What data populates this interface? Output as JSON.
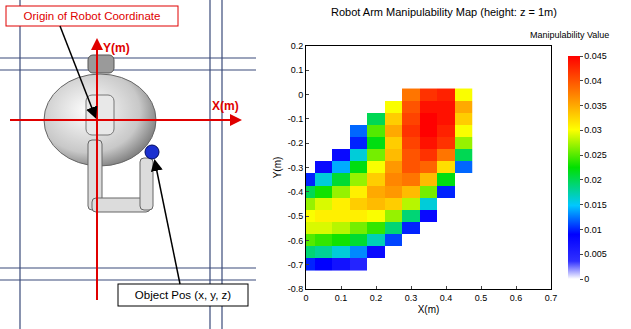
{
  "diagram": {
    "origin_label": "Origin of Robot Coordinate",
    "x_axis_label": "X(m)",
    "y_axis_label": "Y(m)",
    "object_label": "Object Pos (x, y, z)"
  },
  "chart_data": {
    "type": "heatmap",
    "title": "Robot Arm Manipulability Map (height: z = 1m)",
    "x_label": "X(m)",
    "y_label": "Y(m)",
    "x": [
      0,
      0.05,
      0.1,
      0.15,
      0.2,
      0.25,
      0.3,
      0.35,
      0.4,
      0.45
    ],
    "y": [
      -0.7,
      -0.65,
      -0.6,
      -0.55,
      -0.5,
      -0.45,
      -0.4,
      -0.35,
      -0.3,
      -0.25,
      -0.2,
      -0.15,
      -0.1,
      -0.05,
      0
    ],
    "cells": [
      [
        0.01,
        0.009,
        0.007,
        0.005,
        null,
        null,
        null,
        null,
        null,
        null
      ],
      [
        0.019,
        0.018,
        0.016,
        0.013,
        0.008,
        null,
        null,
        null,
        null,
        null
      ],
      [
        0.025,
        0.024,
        0.023,
        0.021,
        0.017,
        0.011,
        null,
        null,
        null,
        null
      ],
      [
        0.029,
        0.029,
        0.028,
        0.026,
        0.024,
        0.019,
        0.01,
        null,
        null,
        null
      ],
      [
        0.03,
        0.031,
        0.031,
        0.031,
        0.03,
        0.027,
        0.019,
        0.008,
        null,
        null
      ],
      [
        0.027,
        0.029,
        0.031,
        0.033,
        0.034,
        0.033,
        0.028,
        0.016,
        null,
        null
      ],
      [
        0.02,
        0.023,
        0.027,
        0.031,
        0.035,
        0.036,
        0.034,
        0.026,
        0.01,
        null
      ],
      [
        0.01,
        0.016,
        0.021,
        0.027,
        0.033,
        0.037,
        0.038,
        0.034,
        0.022,
        null
      ],
      [
        null,
        0.008,
        0.014,
        0.022,
        0.03,
        0.036,
        0.04,
        0.039,
        0.032,
        0.012
      ],
      [
        null,
        null,
        0.008,
        0.016,
        0.026,
        0.034,
        0.04,
        0.042,
        0.038,
        0.02
      ],
      [
        null,
        null,
        null,
        0.01,
        0.022,
        0.033,
        0.041,
        0.044,
        0.042,
        0.027
      ],
      [
        null,
        null,
        null,
        0.012,
        0.025,
        0.035,
        0.042,
        0.045,
        0.043,
        0.03
      ],
      [
        null,
        null,
        null,
        null,
        0.02,
        0.033,
        0.041,
        0.045,
        0.044,
        0.033
      ],
      [
        null,
        null,
        null,
        null,
        null,
        0.03,
        0.04,
        0.044,
        0.044,
        0.035
      ],
      [
        null,
        null,
        null,
        null,
        null,
        null,
        0.038,
        0.042,
        0.043,
        0.03
      ]
    ],
    "xlim": [
      0,
      0.7
    ],
    "xticks": [
      0,
      0.1,
      0.2,
      0.3,
      0.4,
      0.5,
      0.6,
      0.7
    ],
    "ylim": [
      -0.8,
      0.2
    ],
    "yticks": [
      -0.8,
      -0.7,
      -0.6,
      -0.5,
      -0.4,
      -0.3,
      -0.2,
      -0.1,
      0,
      0.1,
      0.2
    ],
    "colorbar": {
      "title": "Manipulability Value",
      "range": [
        0,
        0.045
      ],
      "ticks": [
        0,
        0.005,
        0.01,
        0.015,
        0.02,
        0.025,
        0.03,
        0.035,
        0.04,
        0.045
      ]
    },
    "grid": false
  }
}
